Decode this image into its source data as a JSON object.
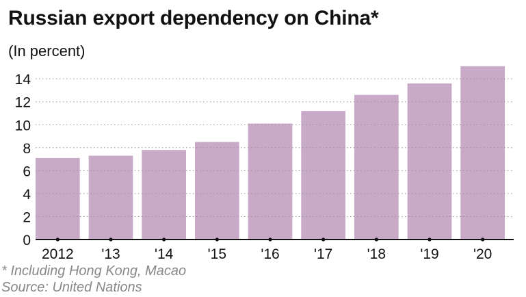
{
  "chart_data": {
    "type": "bar",
    "title": "Russian export dependency on China*",
    "subtitle": "(In percent)",
    "categories": [
      "2012",
      "'13",
      "'14",
      "'15",
      "'16",
      "'17",
      "'18",
      "'19",
      "'20"
    ],
    "values": [
      7.1,
      7.3,
      7.8,
      8.5,
      10.1,
      11.2,
      12.6,
      13.6,
      15.1
    ],
    "yticks": [
      0,
      2,
      4,
      6,
      8,
      10,
      12,
      14
    ],
    "ylim": [
      0,
      15.5
    ],
    "grid": true,
    "bar_color": "#c8aac8"
  },
  "footnote": "* Including Hong Kong, Macao",
  "source": "Source: United Nations"
}
